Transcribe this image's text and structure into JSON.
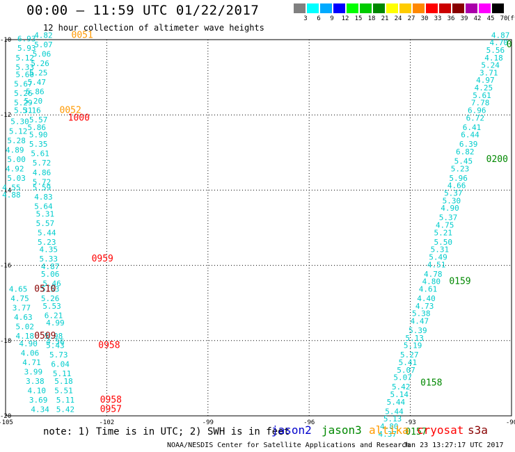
{
  "header": {
    "title": "00:00 – 11:59 UTC 01/22/2017",
    "subtitle": "12 hour collection of altimeter wave heights"
  },
  "legend": {
    "unit": "(ft)",
    "colors": [
      "#808080",
      "#00ffff",
      "#00aaff",
      "#0000ff",
      "#00ff00",
      "#00cc00",
      "#008800",
      "#ffff00",
      "#ffcc00",
      "#ff8800",
      "#ff0000",
      "#cc0000",
      "#880000",
      "#aa00aa",
      "#ff00ff",
      "#000000"
    ],
    "labels": [
      "3",
      "6",
      "9",
      "12",
      "15",
      "18",
      "21",
      "24",
      "27",
      "30",
      "33",
      "36",
      "39",
      "42",
      "45",
      "70"
    ]
  },
  "axes": {
    "x_ticks": [
      "-105",
      "-102",
      "-99",
      "-96",
      "-93",
      "-90"
    ],
    "y_ticks": [
      "-10",
      "-12",
      "-14",
      "-16",
      "-18",
      "-20"
    ]
  },
  "colors": {
    "swh": "#00cccc",
    "time_orange": "#ff9900",
    "time_red": "#ff0000",
    "time_darkred": "#880000",
    "time_green": "#008800",
    "grid": "#000000"
  },
  "swh_labels": [
    {
      "t": "4.82",
      "lon": -104.15,
      "lat": -9.95
    },
    {
      "t": "6.93",
      "lon": -104.65,
      "lat": -10.05
    },
    {
      "t": "5.07",
      "lon": -104.15,
      "lat": -10.2
    },
    {
      "t": "5.93",
      "lon": -104.65,
      "lat": -10.3
    },
    {
      "t": "5.06",
      "lon": -104.2,
      "lat": -10.45
    },
    {
      "t": "5.12",
      "lon": -104.7,
      "lat": -10.55
    },
    {
      "t": "5.26",
      "lon": -104.25,
      "lat": -10.7
    },
    {
      "t": "5.33",
      "lon": -104.7,
      "lat": -10.8
    },
    {
      "t": "5.25",
      "lon": -104.3,
      "lat": -10.95
    },
    {
      "t": "5.60",
      "lon": -104.7,
      "lat": -11.0
    },
    {
      "t": "5.47",
      "lon": -104.35,
      "lat": -11.2
    },
    {
      "t": "5.67",
      "lon": -104.75,
      "lat": -11.25
    },
    {
      "t": "5.86",
      "lon": -104.4,
      "lat": -11.45
    },
    {
      "t": "5.26",
      "lon": -104.75,
      "lat": -11.5
    },
    {
      "t": "5.20",
      "lon": -104.45,
      "lat": -11.7
    },
    {
      "t": "5.29",
      "lon": -104.75,
      "lat": -11.75
    },
    {
      "t": "5.31",
      "lon": -104.75,
      "lat": -11.95
    },
    {
      "t": "5.16",
      "lon": -104.5,
      "lat": -11.95
    },
    {
      "t": "5.57",
      "lon": -104.3,
      "lat": -12.2
    },
    {
      "t": "5.30",
      "lon": -104.85,
      "lat": -12.25
    },
    {
      "t": "5.86",
      "lon": -104.35,
      "lat": -12.4
    },
    {
      "t": "5.12",
      "lon": -104.9,
      "lat": -12.5
    },
    {
      "t": "5.90",
      "lon": -104.3,
      "lat": -12.6
    },
    {
      "t": "5.28",
      "lon": -104.95,
      "lat": -12.75
    },
    {
      "t": "5.35",
      "lon": -104.3,
      "lat": -12.85
    },
    {
      "t": "4.89",
      "lon": -105.0,
      "lat": -13.0
    },
    {
      "t": "5.61",
      "lon": -104.25,
      "lat": -13.1
    },
    {
      "t": "5.00",
      "lon": -104.95,
      "lat": -13.25
    },
    {
      "t": "5.72",
      "lon": -104.2,
      "lat": -13.35
    },
    {
      "t": "4.92",
      "lon": -105.0,
      "lat": -13.5
    },
    {
      "t": "4.86",
      "lon": -104.2,
      "lat": -13.6
    },
    {
      "t": "5.03",
      "lon": -104.95,
      "lat": -13.75
    },
    {
      "t": "5.72",
      "lon": -104.2,
      "lat": -13.85
    },
    {
      "t": "4.55",
      "lon": -105.1,
      "lat": -14.0
    },
    {
      "t": "5.59",
      "lon": -104.2,
      "lat": -14.0
    },
    {
      "t": "4.88",
      "lon": -105.1,
      "lat": -14.2
    },
    {
      "t": "4.83",
      "lon": -104.15,
      "lat": -14.25
    },
    {
      "t": "5.64",
      "lon": -104.15,
      "lat": -14.5
    },
    {
      "t": "5.31",
      "lon": -104.1,
      "lat": -14.7
    },
    {
      "t": "5.57",
      "lon": -104.1,
      "lat": -14.95
    },
    {
      "t": "5.44",
      "lon": -104.05,
      "lat": -15.2
    },
    {
      "t": "5.23",
      "lon": -104.05,
      "lat": -15.45
    },
    {
      "t": "4.35",
      "lon": -104.0,
      "lat": -15.65
    },
    {
      "t": "5.33",
      "lon": -104.0,
      "lat": -15.9
    },
    {
      "t": "4.87",
      "lon": -103.95,
      "lat": -16.1
    },
    {
      "t": "5.06",
      "lon": -103.95,
      "lat": -16.3
    },
    {
      "t": "5.46",
      "lon": -103.9,
      "lat": -16.55
    },
    {
      "t": "4.65",
      "lon": -104.9,
      "lat": -16.7
    },
    {
      "t": "5.53",
      "lon": -103.95,
      "lat": -16.7
    },
    {
      "t": "4.75",
      "lon": -104.85,
      "lat": -16.95
    },
    {
      "t": "5.26",
      "lon": -103.95,
      "lat": -16.95
    },
    {
      "t": "3.77",
      "lon": -104.8,
      "lat": -17.2
    },
    {
      "t": "5.53",
      "lon": -103.9,
      "lat": -17.15
    },
    {
      "t": "4.63",
      "lon": -104.75,
      "lat": -17.45
    },
    {
      "t": "6.21",
      "lon": -103.85,
      "lat": -17.4
    },
    {
      "t": "5.02",
      "lon": -104.7,
      "lat": -17.7
    },
    {
      "t": "4.99",
      "lon": -103.8,
      "lat": -17.6
    },
    {
      "t": "4.18",
      "lon": -104.7,
      "lat": -17.95
    },
    {
      "t": "5.98",
      "lon": -103.85,
      "lat": -17.95
    },
    {
      "t": "4.90",
      "lon": -104.6,
      "lat": -18.15
    },
    {
      "t": "4.56",
      "lon": -103.8,
      "lat": -18.1
    },
    {
      "t": "5.43",
      "lon": -103.8,
      "lat": -18.2
    },
    {
      "t": "4.06",
      "lon": -104.55,
      "lat": -18.4
    },
    {
      "t": "5.73",
      "lon": -103.7,
      "lat": -18.45
    },
    {
      "t": "4.71",
      "lon": -104.5,
      "lat": -18.65
    },
    {
      "t": "6.04",
      "lon": -103.65,
      "lat": -18.7
    },
    {
      "t": "3.99",
      "lon": -104.45,
      "lat": -18.9
    },
    {
      "t": "5.11",
      "lon": -103.6,
      "lat": -18.95
    },
    {
      "t": "3.38",
      "lon": -104.4,
      "lat": -19.15
    },
    {
      "t": "5.18",
      "lon": -103.55,
      "lat": -19.15
    },
    {
      "t": "4.10",
      "lon": -104.35,
      "lat": -19.4
    },
    {
      "t": "5.51",
      "lon": -103.55,
      "lat": -19.4
    },
    {
      "t": "3.69",
      "lon": -104.3,
      "lat": -19.65
    },
    {
      "t": "5.11",
      "lon": -103.5,
      "lat": -19.65
    },
    {
      "t": "4.34",
      "lon": -104.25,
      "lat": -19.9
    },
    {
      "t": "5.42",
      "lon": -103.5,
      "lat": -19.9
    },
    {
      "t": "4.87",
      "lon": -90.6,
      "lat": -9.95
    },
    {
      "t": "4.70",
      "lon": -90.65,
      "lat": -10.15
    },
    {
      "t": "5.56",
      "lon": -90.75,
      "lat": -10.35
    },
    {
      "t": "4.18",
      "lon": -90.8,
      "lat": -10.55
    },
    {
      "t": "5.24",
      "lon": -90.9,
      "lat": -10.75
    },
    {
      "t": "3.71",
      "lon": -90.95,
      "lat": -10.95
    },
    {
      "t": "4.97",
      "lon": -91.05,
      "lat": -11.15
    },
    {
      "t": "4.25",
      "lon": -91.1,
      "lat": -11.35
    },
    {
      "t": "5.61",
      "lon": -91.15,
      "lat": -11.55
    },
    {
      "t": "7.78",
      "lon": -91.2,
      "lat": -11.75
    },
    {
      "t": "6.96",
      "lon": -91.3,
      "lat": -11.95
    },
    {
      "t": "6.72",
      "lon": -91.35,
      "lat": -12.15
    },
    {
      "t": "6.41",
      "lon": -91.45,
      "lat": -12.4
    },
    {
      "t": "6.44",
      "lon": -91.5,
      "lat": -12.6
    },
    {
      "t": "6.39",
      "lon": -91.55,
      "lat": -12.85
    },
    {
      "t": "6.82",
      "lon": -91.65,
      "lat": -13.05
    },
    {
      "t": "5.45",
      "lon": -91.7,
      "lat": -13.3
    },
    {
      "t": "5.23",
      "lon": -91.8,
      "lat": -13.5
    },
    {
      "t": "5.96",
      "lon": -91.85,
      "lat": -13.75
    },
    {
      "t": "4.66",
      "lon": -91.9,
      "lat": -13.95
    },
    {
      "t": "5.37",
      "lon": -92.0,
      "lat": -14.15
    },
    {
      "t": "5.30",
      "lon": -92.05,
      "lat": -14.35
    },
    {
      "t": "4.90",
      "lon": -92.1,
      "lat": -14.55
    },
    {
      "t": "5.37",
      "lon": -92.15,
      "lat": -14.8
    },
    {
      "t": "4.75",
      "lon": -92.25,
      "lat": -15.0
    },
    {
      "t": "5.21",
      "lon": -92.3,
      "lat": -15.2
    },
    {
      "t": "5.50",
      "lon": -92.3,
      "lat": -15.45
    },
    {
      "t": "5.31",
      "lon": -92.4,
      "lat": -15.65
    },
    {
      "t": "5.49",
      "lon": -92.45,
      "lat": -15.85
    },
    {
      "t": "4.51",
      "lon": -92.5,
      "lat": -16.05
    },
    {
      "t": "4.78",
      "lon": -92.6,
      "lat": -16.3
    },
    {
      "t": "4.80",
      "lon": -92.65,
      "lat": -16.5
    },
    {
      "t": "4.61",
      "lon": -92.75,
      "lat": -16.7
    },
    {
      "t": "4.40",
      "lon": -92.8,
      "lat": -16.95
    },
    {
      "t": "4.73",
      "lon": -92.85,
      "lat": -17.15
    },
    {
      "t": "5.38",
      "lon": -92.95,
      "lat": -17.35
    },
    {
      "t": "4.47",
      "lon": -93.0,
      "lat": -17.55
    },
    {
      "t": "5.39",
      "lon": -93.05,
      "lat": -17.8
    },
    {
      "t": "5.13",
      "lon": -93.15,
      "lat": -18.0
    },
    {
      "t": "5.19",
      "lon": -93.2,
      "lat": -18.2
    },
    {
      "t": "5.27",
      "lon": -93.3,
      "lat": -18.45
    },
    {
      "t": "5.41",
      "lon": -93.35,
      "lat": -18.65
    },
    {
      "t": "5.07",
      "lon": -93.4,
      "lat": -18.85
    },
    {
      "t": "5.07",
      "lon": -93.5,
      "lat": -19.05
    },
    {
      "t": "5.42",
      "lon": -93.55,
      "lat": -19.3
    },
    {
      "t": "5.14",
      "lon": -93.6,
      "lat": -19.5
    },
    {
      "t": "5.44",
      "lon": -93.7,
      "lat": -19.7
    },
    {
      "t": "5.44",
      "lon": -93.75,
      "lat": -19.95
    },
    {
      "t": "5.13",
      "lon": -93.8,
      "lat": -20.15
    },
    {
      "t": "4.80",
      "lon": -93.9,
      "lat": -20.35
    },
    {
      "t": "4.37",
      "lon": -93.95,
      "lat": -20.55
    }
  ],
  "time_labels": [
    {
      "t": "0051",
      "c": "orange",
      "lon": -103.05,
      "lat": -9.95
    },
    {
      "t": "0052",
      "c": "orange",
      "lon": -103.4,
      "lat": -11.95
    },
    {
      "t": "1000",
      "c": "red",
      "lon": -103.15,
      "lat": -12.15
    },
    {
      "t": "0959",
      "c": "red",
      "lon": -102.45,
      "lat": -15.9
    },
    {
      "t": "0510",
      "c": "darkred",
      "lon": -104.15,
      "lat": -16.7
    },
    {
      "t": "0509",
      "c": "darkred",
      "lon": -104.15,
      "lat": -17.95
    },
    {
      "t": "0958",
      "c": "red",
      "lon": -102.25,
      "lat": -18.2
    },
    {
      "t": "0958",
      "c": "red",
      "lon": -102.2,
      "lat": -19.65
    },
    {
      "t": "0957",
      "c": "red",
      "lon": -102.2,
      "lat": -19.9
    },
    {
      "t": "0",
      "c": "green",
      "lon": -90.15,
      "lat": -10.2
    },
    {
      "t": "0200",
      "c": "green",
      "lon": -90.75,
      "lat": -13.25
    },
    {
      "t": "0159",
      "c": "green",
      "lon": -91.85,
      "lat": -16.5
    },
    {
      "t": "0158",
      "c": "green",
      "lon": -92.7,
      "lat": -19.2
    },
    {
      "t": "0157",
      "c": "green",
      "lon": -93.15,
      "lat": -20.5
    }
  ],
  "footer": {
    "note": "note: 1) Time is in UTC; 2) SWH is in feet",
    "satellites": [
      {
        "name": "jason2",
        "color": "#0000cc"
      },
      {
        "name": "jason3",
        "color": "#008800"
      },
      {
        "name": "altika",
        "color": "#ff9900"
      },
      {
        "name": "cryosat",
        "color": "#ff0000"
      },
      {
        "name": "s3a",
        "color": "#880000"
      }
    ],
    "credit": "NOAA/NESDIS Center for Satellite Applications and Research",
    "stamp": "Jan 23 13:27:17 UTC 2017"
  }
}
